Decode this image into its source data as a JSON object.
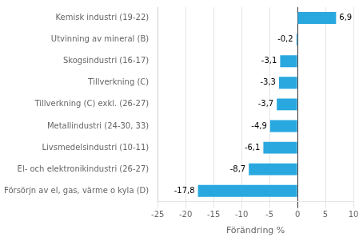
{
  "chart_data": {
    "type": "bar",
    "orientation": "horizontal",
    "categories": [
      "Kemisk industri (19-22)",
      "Utvinning av mineral (B)",
      "Skogsindustri (16-17)",
      "Tillverkning (C)",
      "Tillverkning (C) exkl. (26-27)",
      "Metallindustri (24-30, 33)",
      "Livsmedelsindustri (10-11)",
      "El- och elektronikindustri (26-27)",
      "Försörjn av el, gas, värme o kyla (D)"
    ],
    "values": [
      6.9,
      -0.2,
      -3.1,
      -3.3,
      -3.7,
      -4.9,
      -6.1,
      -8.7,
      -17.8
    ],
    "value_labels": [
      "6,9",
      "-0,2",
      "-3,1",
      "-3,3",
      "-3,7",
      "-4,9",
      "-6,1",
      "-8,7",
      "-17,8"
    ],
    "color": "#29a8e0",
    "xlabel": "Förändring %",
    "xlim": [
      -25,
      10
    ],
    "xticks": [
      -25,
      -20,
      -15,
      -10,
      -5,
      0,
      5,
      10
    ],
    "grid": true,
    "data_labels": true
  }
}
